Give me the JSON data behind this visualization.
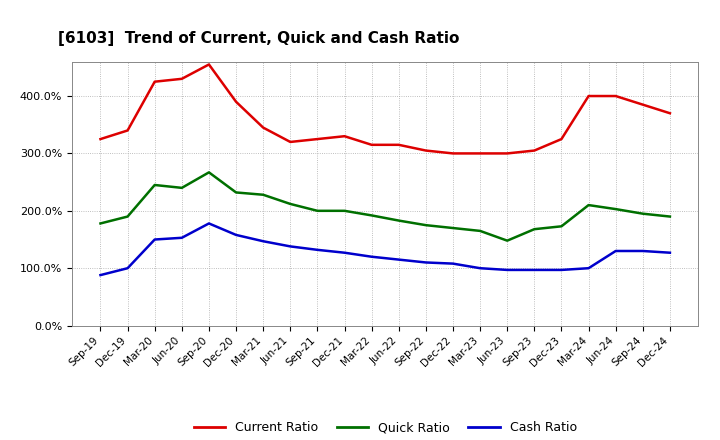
{
  "title": "[6103]  Trend of Current, Quick and Cash Ratio",
  "x_labels": [
    "Sep-19",
    "Dec-19",
    "Mar-20",
    "Jun-20",
    "Sep-20",
    "Dec-20",
    "Mar-21",
    "Jun-21",
    "Sep-21",
    "Dec-21",
    "Mar-22",
    "Jun-22",
    "Sep-22",
    "Dec-22",
    "Mar-23",
    "Jun-23",
    "Sep-23",
    "Dec-23",
    "Mar-24",
    "Jun-24",
    "Sep-24",
    "Dec-24"
  ],
  "current_ratio": [
    325,
    340,
    425,
    430,
    455,
    390,
    345,
    320,
    325,
    330,
    315,
    315,
    305,
    300,
    300,
    300,
    305,
    325,
    400,
    400,
    385,
    370
  ],
  "quick_ratio": [
    178,
    190,
    245,
    240,
    267,
    232,
    228,
    212,
    200,
    200,
    192,
    183,
    175,
    170,
    165,
    148,
    168,
    173,
    210,
    203,
    195,
    190
  ],
  "cash_ratio": [
    88,
    100,
    150,
    153,
    178,
    158,
    147,
    138,
    132,
    127,
    120,
    115,
    110,
    108,
    100,
    97,
    97,
    97,
    100,
    130,
    130,
    127
  ],
  "current_color": "#dd0000",
  "quick_color": "#007000",
  "cash_color": "#0000cc",
  "background_color": "#ffffff",
  "grid_color": "#aaaaaa",
  "ylim": [
    0,
    460
  ],
  "yticks": [
    0,
    100,
    200,
    300,
    400
  ],
  "ytick_labels": [
    "0.0%",
    "100.0%",
    "200.0%",
    "300.0%",
    "400.0%"
  ],
  "legend_labels": [
    "Current Ratio",
    "Quick Ratio",
    "Cash Ratio"
  ],
  "line_width": 1.8,
  "title_fontsize": 11,
  "tick_fontsize": 7.5,
  "ytick_fontsize": 8
}
